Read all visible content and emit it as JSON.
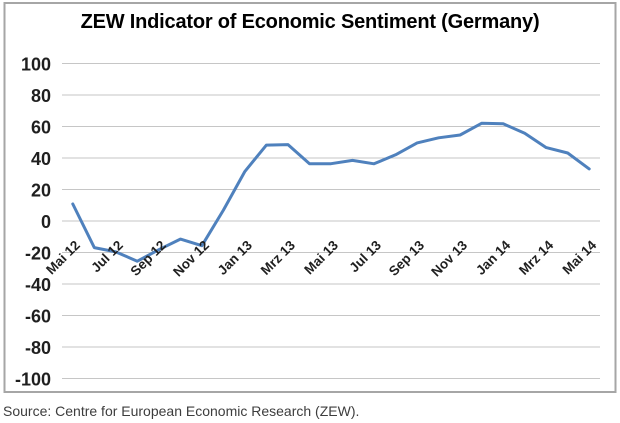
{
  "title": "ZEW Indicator of Economic Sentiment (Germany)",
  "source_note": "Source: Centre for European Economic Research (ZEW).",
  "chart_data": {
    "type": "line",
    "title": "ZEW Indicator of Economic Sentiment (Germany)",
    "x": [
      "Mai 12",
      "Jun 12",
      "Jul 12",
      "Aug 12",
      "Sep 12",
      "Okt 12",
      "Nov 12",
      "Dez 12",
      "Jan 13",
      "Feb 13",
      "Mrz 13",
      "Apr 13",
      "Mai 13",
      "Jun 13",
      "Jul 13",
      "Aug 13",
      "Sep 13",
      "Okt 13",
      "Nov 13",
      "Dez 13",
      "Jan 14",
      "Feb 14",
      "Mrz 14",
      "Apr 14",
      "Mai 14"
    ],
    "values": [
      10.8,
      -16.9,
      -19.6,
      -25.5,
      -18.2,
      -11.5,
      -15.7,
      6.9,
      31.5,
      48.2,
      48.5,
      36.3,
      36.4,
      38.5,
      36.3,
      42.0,
      49.6,
      52.8,
      54.6,
      62.0,
      61.7,
      55.7,
      46.6,
      43.2,
      33.1
    ],
    "x_tick_labels": [
      "Mai 12",
      "Jul 12",
      "Sep 12",
      "Nov 12",
      "Jan 13",
      "Mrz 13",
      "Mai 13",
      "Jul 13",
      "Sep 13",
      "Nov 13",
      "Jan 14",
      "Mrz 14",
      "Mai 14"
    ],
    "xtick_every": 2,
    "y_tick_labels": [
      "100",
      "80",
      "60",
      "40",
      "20",
      "0",
      "-20",
      "-40",
      "-60",
      "-80",
      "-100"
    ],
    "ylim": [
      -100,
      100
    ],
    "ytick_step": 20,
    "grid": "horizontal",
    "legend": "none",
    "line_color": "#4F81BD",
    "gridline_color": "#C6C6C6",
    "frame_color": "#A6A6A6"
  }
}
